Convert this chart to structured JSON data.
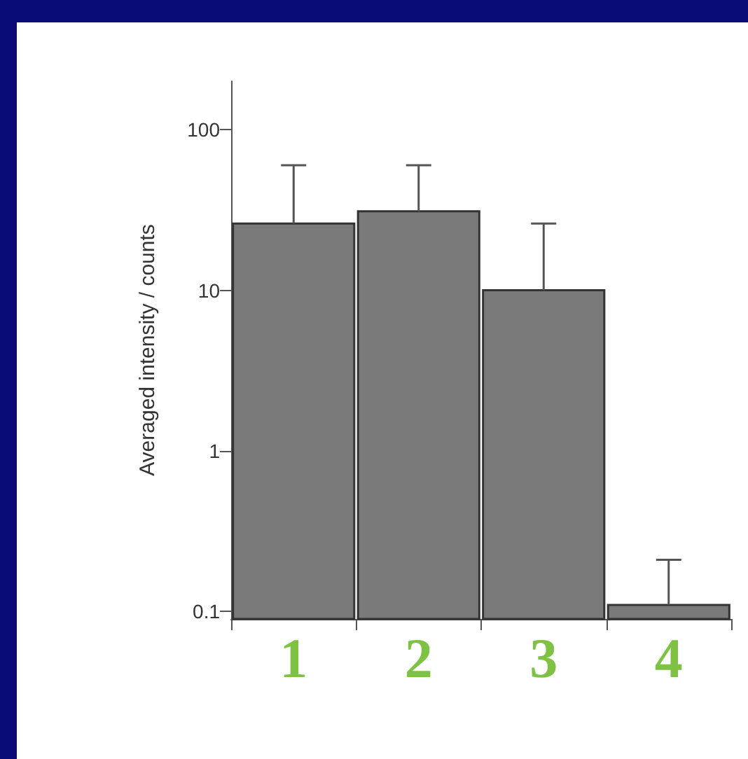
{
  "chart_data": {
    "type": "bar",
    "ylabel": "Averaged intensity / counts",
    "categories": [
      "1",
      "2",
      "3",
      "4"
    ],
    "values": [
      26,
      31,
      10,
      0.11
    ],
    "errors": [
      [
        26,
        60
      ],
      [
        31,
        60
      ],
      [
        10,
        26
      ],
      [
        0.11,
        0.21
      ]
    ],
    "color": "#7a7a7a",
    "log": "y",
    "ylim": [
      0.09,
      200
    ],
    "yticks": [
      0.1,
      1,
      10,
      100
    ],
    "grid": false
  }
}
